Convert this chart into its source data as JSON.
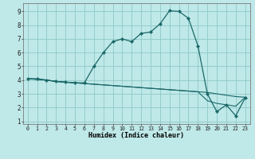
{
  "xlabel": "Humidex (Indice chaleur)",
  "bg_color": "#bfe8e8",
  "grid_color": "#8fc8c8",
  "line_color": "#1a6868",
  "xlim": [
    -0.5,
    23.5
  ],
  "ylim": [
    0.8,
    9.6
  ],
  "xticks": [
    0,
    1,
    2,
    3,
    4,
    5,
    6,
    7,
    8,
    9,
    10,
    11,
    12,
    13,
    14,
    15,
    16,
    17,
    18,
    19,
    20,
    21,
    22,
    23
  ],
  "yticks": [
    1,
    2,
    3,
    4,
    5,
    6,
    7,
    8,
    9
  ],
  "main_x": [
    0,
    1,
    2,
    3,
    4,
    5,
    6,
    7,
    8,
    9,
    10,
    11,
    12,
    13,
    14,
    15,
    16,
    17,
    18,
    19,
    20,
    21,
    22,
    23
  ],
  "main_y": [
    4.1,
    4.1,
    4.0,
    3.9,
    3.85,
    3.8,
    3.8,
    5.0,
    6.0,
    6.8,
    7.0,
    6.8,
    7.4,
    7.5,
    8.1,
    9.05,
    9.0,
    8.5,
    6.5,
    3.0,
    1.7,
    2.2,
    1.4,
    2.7
  ],
  "line2_x": [
    0,
    1,
    2,
    3,
    4,
    5,
    6,
    7,
    8,
    9,
    10,
    11,
    12,
    13,
    14,
    15,
    16,
    17,
    18,
    19,
    20,
    21,
    22,
    23
  ],
  "line2_y": [
    4.1,
    4.05,
    4.0,
    3.9,
    3.85,
    3.8,
    3.75,
    3.7,
    3.65,
    3.6,
    3.55,
    3.5,
    3.45,
    3.4,
    3.35,
    3.3,
    3.25,
    3.2,
    3.15,
    3.1,
    3.0,
    2.9,
    2.8,
    2.75
  ],
  "line3_x": [
    0,
    1,
    2,
    3,
    4,
    5,
    6,
    7,
    8,
    9,
    10,
    11,
    12,
    13,
    14,
    15,
    16,
    17,
    18,
    19,
    20,
    21,
    22,
    23
  ],
  "line3_y": [
    4.1,
    4.05,
    4.0,
    3.9,
    3.85,
    3.8,
    3.75,
    3.7,
    3.65,
    3.6,
    3.55,
    3.5,
    3.45,
    3.4,
    3.35,
    3.3,
    3.25,
    3.2,
    3.15,
    2.5,
    2.3,
    2.2,
    2.1,
    2.75
  ]
}
